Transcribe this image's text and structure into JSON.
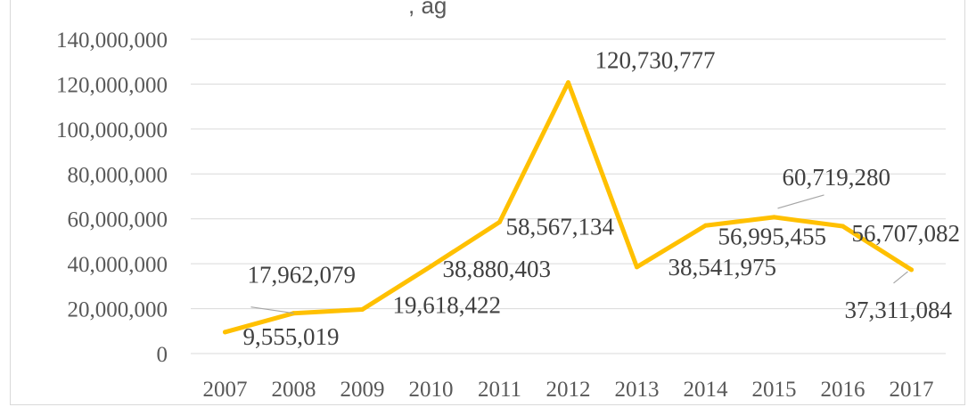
{
  "chart_data": {
    "type": "line",
    "title": ", ag",
    "xlabel": "",
    "ylabel": "",
    "categories": [
      "2007",
      "2008",
      "2009",
      "2010",
      "2011",
      "2012",
      "2013",
      "2014",
      "2015",
      "2016",
      "2017"
    ],
    "series": [
      {
        "values": [
          9555019,
          17962079,
          19618422,
          38880403,
          58567134,
          120730777,
          38541975,
          56995455,
          60719280,
          56707082,
          37311084
        ],
        "color": "#ffc000"
      }
    ],
    "data_labels": [
      "9,555,019",
      "17,962,079",
      "19,618,422",
      "38,880,403",
      "58,567,134",
      "120,730,777",
      "38,541,975",
      "56,995,455",
      "60,719,280",
      "56,707,082",
      "37,311,084"
    ],
    "ylim": [
      0,
      140000000
    ],
    "yticks": [
      0,
      20000000,
      40000000,
      60000000,
      80000000,
      100000000,
      120000000,
      140000000
    ],
    "ytick_labels": [
      "0",
      "20,000,000",
      "40,000,000",
      "60,000,000",
      "80,000,000",
      "100,000,000",
      "120,000,000",
      "140,000,000"
    ],
    "grid": true,
    "legend": "none"
  }
}
